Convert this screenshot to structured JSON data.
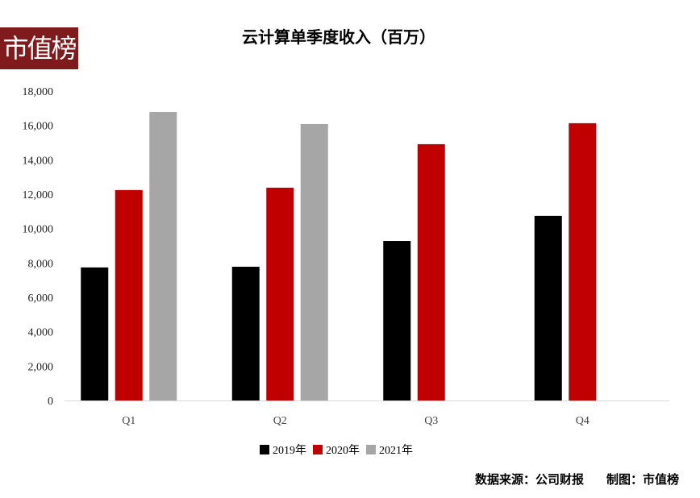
{
  "logo_text": "市值榜",
  "footer": {
    "source": "数据来源：公司财报",
    "credit": "制图：市值榜"
  },
  "chart_data": {
    "type": "bar",
    "title": "云计算单季度收入（百万）",
    "xlabel": "",
    "ylabel": "",
    "categories": [
      "Q1",
      "Q2",
      "Q3",
      "Q4"
    ],
    "series": [
      {
        "name": "2019年",
        "color": "#000000",
        "values": [
          7740,
          7780,
          9280,
          10740
        ]
      },
      {
        "name": "2020年",
        "color": "#c00000",
        "values": [
          12240,
          12380,
          14910,
          16130
        ]
      },
      {
        "name": "2021年",
        "color": "#a6a6a6",
        "values": [
          16780,
          16080,
          null,
          null
        ]
      }
    ],
    "ylim": [
      0,
      18000
    ],
    "yticks": [
      "0",
      "2,000",
      "4,000",
      "6,000",
      "8,000",
      "10,000",
      "12,000",
      "14,000",
      "16,000",
      "18,000"
    ],
    "grid": false,
    "legend": "bottom"
  }
}
